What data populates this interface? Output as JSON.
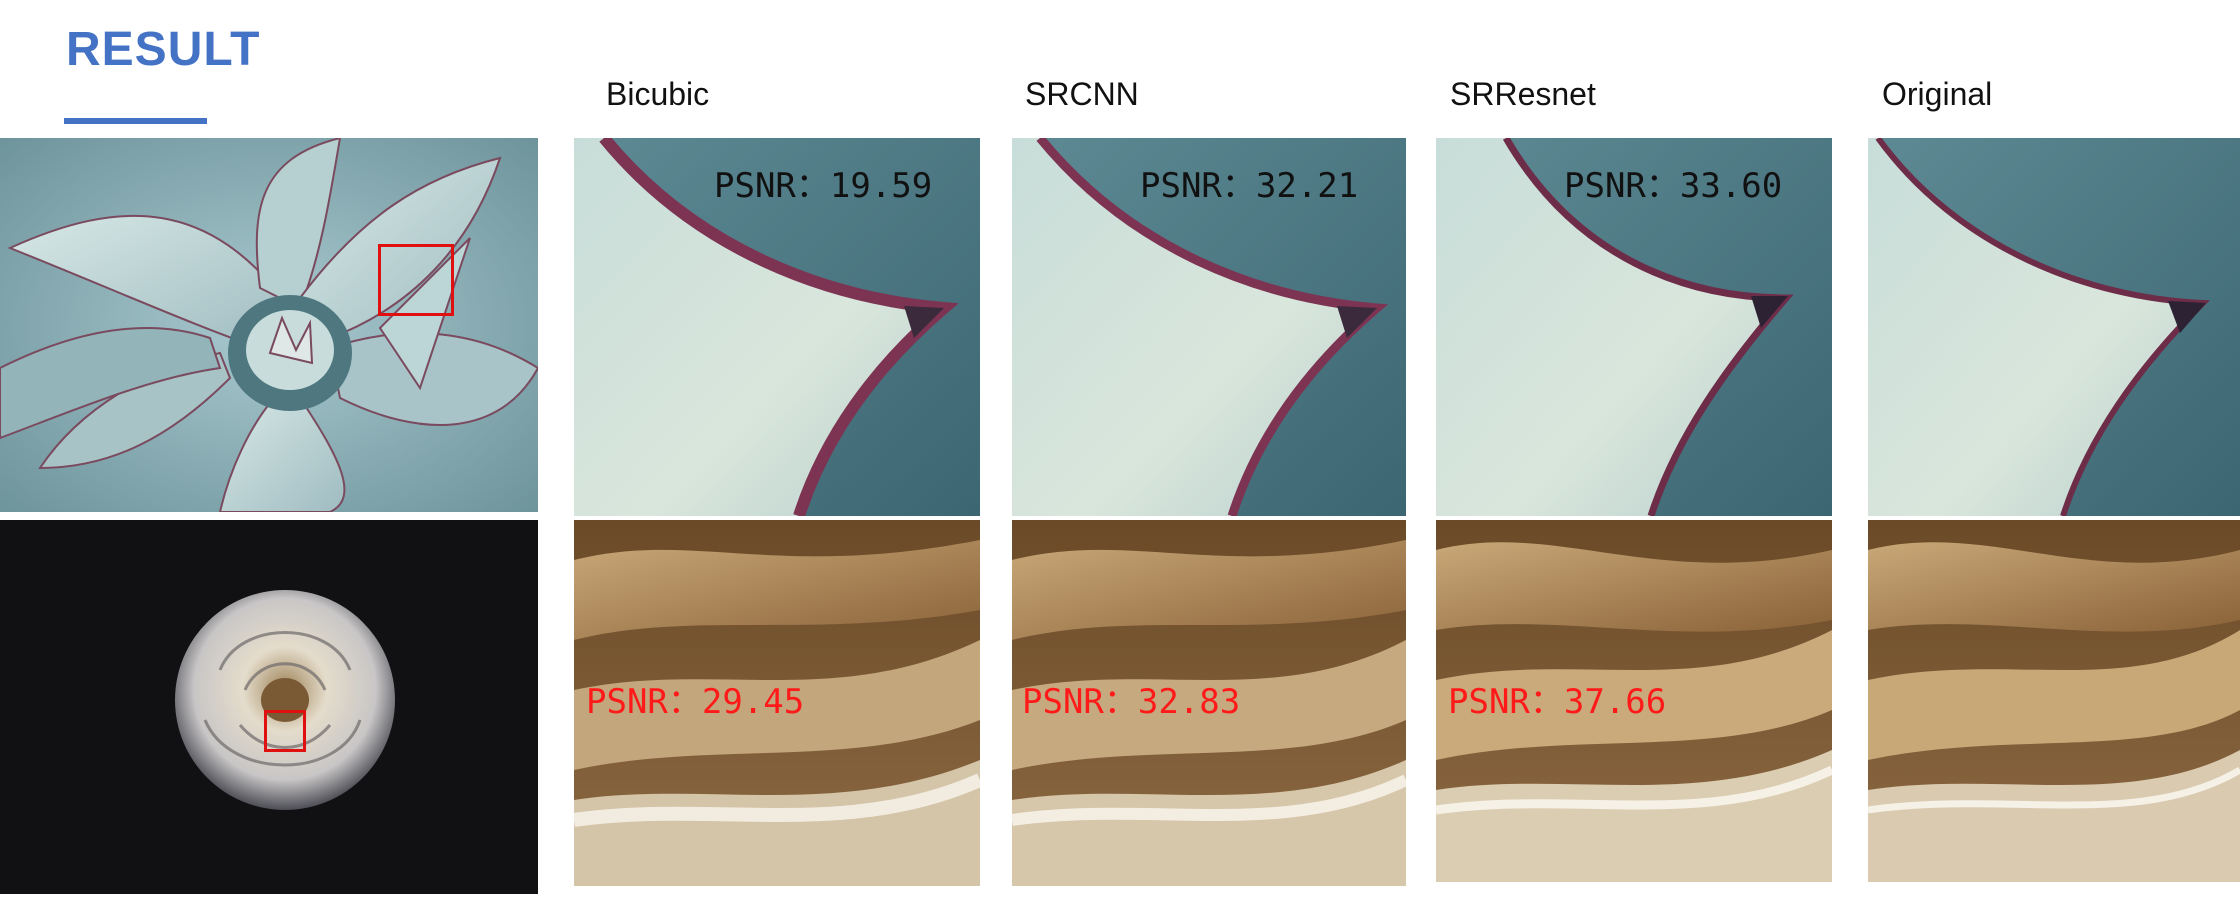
{
  "page": {
    "title": "RESULT",
    "accent_color": "#4472c4"
  },
  "columns": [
    "Bicubic",
    "SRCNN",
    "SRResnet",
    "Original"
  ],
  "rows": [
    {
      "subject": "agave",
      "psnr_color": "#111111",
      "psnr": [
        "PSNR：19.59",
        "PSNR：32.21",
        "PSNR：33.60"
      ]
    },
    {
      "subject": "rose",
      "psnr_color": "#ff1a1a",
      "psnr": [
        "PSNR：29.45",
        "PSNR：32.83",
        "PSNR：37.66"
      ]
    }
  ]
}
